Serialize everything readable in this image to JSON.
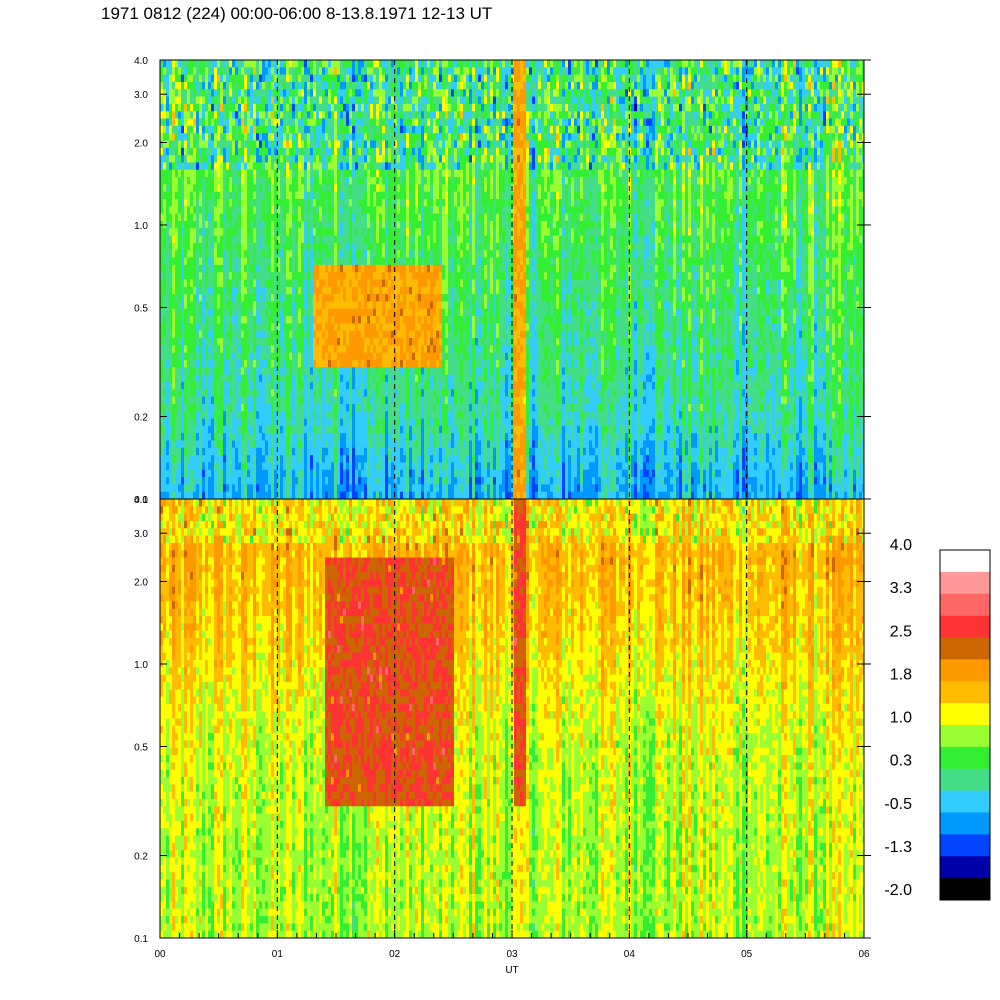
{
  "chart_data": {
    "type": "heatmap",
    "title": "1971 0812 (224) 00:00-06:00 8-13.8.1971  12-13 UT",
    "xlabel": "UT",
    "x_ticks": [
      "00",
      "01",
      "02",
      "03",
      "04",
      "05",
      "06"
    ],
    "xlim": [
      0,
      6
    ],
    "panels": [
      {
        "name": "",
        "yscale": "log",
        "ylim": [
          0.1,
          4.0
        ],
        "y_ticks": [
          "0.1",
          "0.2",
          "0.5",
          "1.0",
          "2.0",
          "3.0",
          "4.0"
        ],
        "dominant_levels": [
          "-0.5",
          "0.3",
          "1.0"
        ],
        "enhancements": [
          {
            "x": [
              1.3,
              2.4
            ],
            "y": [
              0.3,
              0.7
            ],
            "level": "1.8"
          },
          {
            "x": [
              3.0,
              3.1
            ],
            "y": [
              0.1,
              4.0
            ],
            "level": "1.8"
          }
        ]
      },
      {
        "name": "",
        "yscale": "log",
        "ylim": [
          0.1,
          4.0
        ],
        "y_ticks": [
          "0.1",
          "0.2",
          "0.5",
          "1.0",
          "2.0",
          "3.0",
          "4.0"
        ],
        "dominant_levels": [
          "1.0",
          "1.8"
        ],
        "enhancements": [
          {
            "x": [
              1.4,
              2.5
            ],
            "y": [
              0.3,
              2.5
            ],
            "level": "2.5"
          },
          {
            "x": [
              3.0,
              3.1
            ],
            "y": [
              0.3,
              4.0
            ],
            "level": "2.5"
          }
        ]
      }
    ],
    "dashed_lines_x": [
      1,
      2,
      3,
      4,
      5
    ],
    "colorbar": {
      "labels": [
        "4.0",
        "3.3",
        "2.5",
        "1.8",
        "1.0",
        "0.3",
        "-0.5",
        "-1.3",
        "-2.0"
      ],
      "colors": [
        "#ffffff",
        "#ff9999",
        "#ff6666",
        "#ff3333",
        "#cc6600",
        "#ff9900",
        "#ffbb00",
        "#ffff00",
        "#99ff33",
        "#33ee33",
        "#44dd88",
        "#33ccff",
        "#0099ff",
        "#0044ff",
        "#0000aa",
        "#000000"
      ],
      "range": [
        -2.0,
        4.0
      ]
    }
  }
}
